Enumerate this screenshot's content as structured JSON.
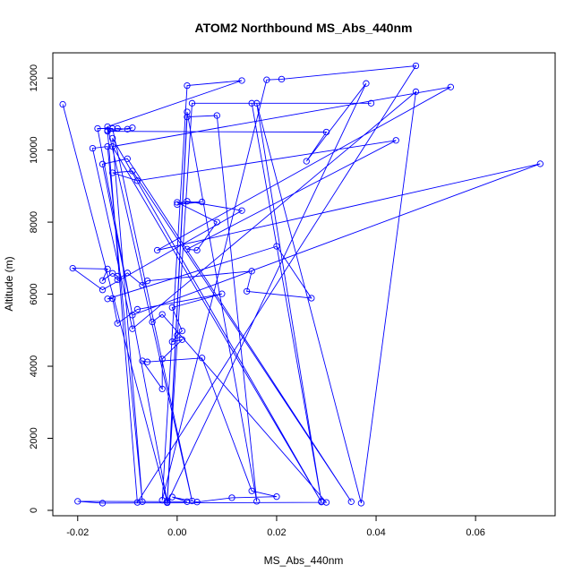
{
  "chart_data": {
    "type": "line",
    "title": "ATOM2 Northbound MS_Abs_440nm",
    "xlabel": "MS_Abs_440nm",
    "ylabel": "Altitude (m)",
    "xlim": [
      -0.025,
      0.076
    ],
    "ylim": [
      -150,
      12700
    ],
    "xticks": [
      -0.02,
      0.0,
      0.02,
      0.04,
      0.06
    ],
    "xtick_labels": [
      "-0.02",
      "0.00",
      "0.02",
      "0.04",
      "0.06"
    ],
    "yticks": [
      0,
      2000,
      4000,
      6000,
      8000,
      10000,
      12000
    ],
    "ytick_labels": [
      "0",
      "2000",
      "4000",
      "6000",
      "8000",
      "10000",
      "12000"
    ],
    "grid": false,
    "legend": "none",
    "marker": "open-circle",
    "color": "#0000ff",
    "points": [
      {
        "x": -0.023,
        "y": 11270
      },
      {
        "x": -0.002,
        "y": 230
      },
      {
        "x": -0.016,
        "y": 10600
      },
      {
        "x": -0.013,
        "y": 10600
      },
      {
        "x": 0.003,
        "y": 260
      },
      {
        "x": -0.014,
        "y": 10650
      },
      {
        "x": 0.013,
        "y": 11930
      },
      {
        "x": 0.002,
        "y": 11790
      },
      {
        "x": -0.003,
        "y": 280
      },
      {
        "x": 0.018,
        "y": 11950
      },
      {
        "x": 0.021,
        "y": 11970
      },
      {
        "x": 0.048,
        "y": 12340
      },
      {
        "x": -0.008,
        "y": 220
      },
      {
        "x": -0.014,
        "y": 10550
      },
      {
        "x": -0.012,
        "y": 10600
      },
      {
        "x": -0.01,
        "y": 10580
      },
      {
        "x": -0.009,
        "y": 10620
      },
      {
        "x": -0.014,
        "y": 10520
      },
      {
        "x": 0.03,
        "y": 10500
      },
      {
        "x": 0.026,
        "y": 9690
      },
      {
        "x": 0.038,
        "y": 11850
      },
      {
        "x": -0.002,
        "y": 210
      },
      {
        "x": 0.002,
        "y": 10920
      },
      {
        "x": 0.008,
        "y": 10960
      },
      {
        "x": 0.016,
        "y": 250
      },
      {
        "x": 0.002,
        "y": 11060
      },
      {
        "x": -0.002,
        "y": 270
      },
      {
        "x": 0.003,
        "y": 11300
      },
      {
        "x": 0.039,
        "y": 11300
      },
      {
        "x": 0.015,
        "y": 11300
      },
      {
        "x": 0.029,
        "y": 250
      },
      {
        "x": 0.016,
        "y": 11300
      },
      {
        "x": 0.037,
        "y": 200
      },
      {
        "x": 0.048,
        "y": 11620
      },
      {
        "x": -0.009,
        "y": 5040
      },
      {
        "x": -0.017,
        "y": 10050
      },
      {
        "x": -0.014,
        "y": 10100
      },
      {
        "x": -0.007,
        "y": 240
      },
      {
        "x": -0.013,
        "y": 10330
      },
      {
        "x": 0.029,
        "y": 230
      },
      {
        "x": -0.013,
        "y": 10100
      },
      {
        "x": 0.055,
        "y": 11750
      },
      {
        "x": -0.004,
        "y": 7220
      },
      {
        "x": 0.073,
        "y": 9620
      },
      {
        "x": -0.009,
        "y": 5420
      },
      {
        "x": -0.015,
        "y": 9610
      },
      {
        "x": -0.01,
        "y": 9760
      },
      {
        "x": 0.035,
        "y": 240
      },
      {
        "x": -0.009,
        "y": 9420
      },
      {
        "x": -0.013,
        "y": 9370
      },
      {
        "x": -0.008,
        "y": 9150
      },
      {
        "x": 0.044,
        "y": 10270
      },
      {
        "x": 0.002,
        "y": 7250
      },
      {
        "x": 0.004,
        "y": 7220
      },
      {
        "x": 0.008,
        "y": 8000
      },
      {
        "x": 0.0,
        "y": 8550
      },
      {
        "x": 0.005,
        "y": 8560
      },
      {
        "x": 0.0,
        "y": 8490
      },
      {
        "x": 0.002,
        "y": 8580
      },
      {
        "x": 0.013,
        "y": 8320
      },
      {
        "x": -0.015,
        "y": 6120
      },
      {
        "x": -0.021,
        "y": 6720
      },
      {
        "x": -0.014,
        "y": 6700
      },
      {
        "x": -0.015,
        "y": 6380
      },
      {
        "x": -0.013,
        "y": 6580
      },
      {
        "x": -0.012,
        "y": 6500
      },
      {
        "x": -0.012,
        "y": 6400
      },
      {
        "x": -0.01,
        "y": 6590
      },
      {
        "x": -0.007,
        "y": 6250
      },
      {
        "x": -0.006,
        "y": 6370
      },
      {
        "x": 0.015,
        "y": 6640
      },
      {
        "x": 0.014,
        "y": 6080
      },
      {
        "x": 0.027,
        "y": 5890
      },
      {
        "x": 0.02,
        "y": 7330
      },
      {
        "x": -0.014,
        "y": 5870
      },
      {
        "x": -0.013,
        "y": 5880
      },
      {
        "x": -0.012,
        "y": 5190
      },
      {
        "x": -0.008,
        "y": 5580
      },
      {
        "x": 0.009,
        "y": 6010
      },
      {
        "x": -0.001,
        "y": 5630
      },
      {
        "x": 0.001,
        "y": 4980
      },
      {
        "x": 0.0,
        "y": 4860
      },
      {
        "x": -0.001,
        "y": 4680
      },
      {
        "x": 0.001,
        "y": 4740
      },
      {
        "x": -0.003,
        "y": 4200
      },
      {
        "x": -0.003,
        "y": 3370
      },
      {
        "x": -0.007,
        "y": 4150
      },
      {
        "x": -0.006,
        "y": 4120
      },
      {
        "x": 0.005,
        "y": 4230
      },
      {
        "x": 0.015,
        "y": 540
      },
      {
        "x": 0.02,
        "y": 380
      },
      {
        "x": 0.011,
        "y": 350
      },
      {
        "x": 0.004,
        "y": 230
      },
      {
        "x": -0.001,
        "y": 370
      },
      {
        "x": 0.002,
        "y": 240
      },
      {
        "x": -0.02,
        "y": 250
      },
      {
        "x": -0.015,
        "y": 200
      },
      {
        "x": 0.03,
        "y": 220
      },
      {
        "x": -0.003,
        "y": 5440
      },
      {
        "x": -0.005,
        "y": 5230
      }
    ]
  }
}
